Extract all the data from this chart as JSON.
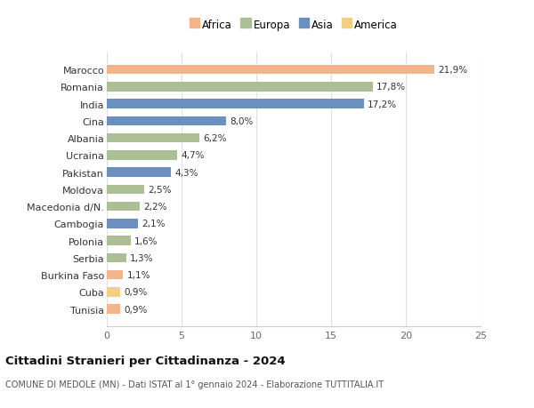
{
  "countries": [
    "Marocco",
    "Romania",
    "India",
    "Cina",
    "Albania",
    "Ucraina",
    "Pakistan",
    "Moldova",
    "Macedonia d/N.",
    "Cambogia",
    "Polonia",
    "Serbia",
    "Burkina Faso",
    "Cuba",
    "Tunisia"
  ],
  "values": [
    21.9,
    17.8,
    17.2,
    8.0,
    6.2,
    4.7,
    4.3,
    2.5,
    2.2,
    2.1,
    1.6,
    1.3,
    1.1,
    0.9,
    0.9
  ],
  "labels": [
    "21,9%",
    "17,8%",
    "17,2%",
    "8,0%",
    "6,2%",
    "4,7%",
    "4,3%",
    "2,5%",
    "2,2%",
    "2,1%",
    "1,6%",
    "1,3%",
    "1,1%",
    "0,9%",
    "0,9%"
  ],
  "continents": [
    "Africa",
    "Europa",
    "Asia",
    "Asia",
    "Europa",
    "Europa",
    "Asia",
    "Europa",
    "Europa",
    "Asia",
    "Europa",
    "Europa",
    "Africa",
    "America",
    "Africa"
  ],
  "colors": {
    "Africa": "#F2B48A",
    "Europa": "#ABBE96",
    "Asia": "#6B8FBF",
    "America": "#F2D080"
  },
  "legend_order": [
    "Africa",
    "Europa",
    "Asia",
    "America"
  ],
  "xlim": [
    0,
    25
  ],
  "xticks": [
    0,
    5,
    10,
    15,
    20,
    25
  ],
  "title": "Cittadini Stranieri per Cittadinanza - 2024",
  "subtitle": "COMUNE DI MEDOLE (MN) - Dati ISTAT al 1° gennaio 2024 - Elaborazione TUTTITALIA.IT",
  "bg_color": "#ffffff",
  "grid_color": "#e0e0e0"
}
